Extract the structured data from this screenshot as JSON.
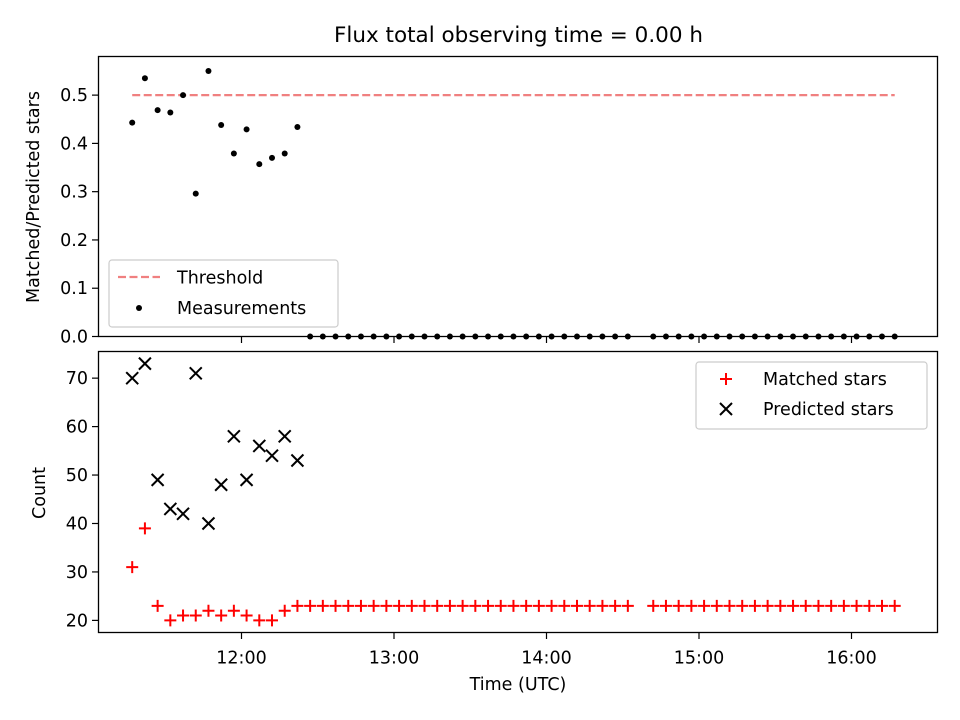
{
  "chart_data": {
    "type": "scatter",
    "title": "Flux total observing time = 0.00 h",
    "xlabel": "Time (UTC)",
    "x_ticks": [
      "12:00",
      "13:00",
      "14:00",
      "15:00",
      "16:00"
    ],
    "colors": {
      "threshold": "#f08080",
      "measurements": "#000000",
      "matched": "#ff0000",
      "predicted": "#000000"
    },
    "panels": [
      {
        "ylabel": "Matched/Predicted stars",
        "ylim": [
          0,
          0.58
        ],
        "y_ticks": [
          "0.0",
          "0.1",
          "0.2",
          "0.3",
          "0.4",
          "0.5"
        ],
        "legend_position": "lower-left",
        "threshold": {
          "name": "Threshold",
          "value": 0.5,
          "x_start": "11:17",
          "x_end": "16:17",
          "style": "dashed"
        },
        "series": [
          {
            "name": "Measurements",
            "marker": "dot",
            "x": [
              "11:17",
              "11:22",
              "11:27",
              "11:32",
              "11:37",
              "11:42",
              "11:47",
              "11:52",
              "11:57",
              "12:02",
              "12:07",
              "12:12",
              "12:17",
              "12:22",
              "12:27",
              "12:32",
              "12:37",
              "12:42",
              "12:47",
              "12:52",
              "12:57",
              "13:02",
              "13:07",
              "13:12",
              "13:17",
              "13:22",
              "13:27",
              "13:32",
              "13:37",
              "13:42",
              "13:47",
              "13:52",
              "13:57",
              "14:02",
              "14:07",
              "14:12",
              "14:17",
              "14:22",
              "14:27",
              "14:32",
              "14:42",
              "14:47",
              "14:52",
              "14:57",
              "15:02",
              "15:07",
              "15:12",
              "15:17",
              "15:22",
              "15:27",
              "15:32",
              "15:37",
              "15:42",
              "15:47",
              "15:52",
              "15:57",
              "16:02",
              "16:07",
              "16:12",
              "16:17"
            ],
            "y": [
              0.443,
              0.535,
              0.469,
              0.464,
              0.5,
              0.296,
              0.55,
              0.438,
              0.379,
              0.429,
              0.357,
              0.37,
              0.379,
              0.434,
              0,
              0,
              0,
              0,
              0,
              0,
              0,
              0,
              0,
              0,
              0,
              0,
              0,
              0,
              0,
              0,
              0,
              0,
              0,
              0,
              0,
              0,
              0,
              0,
              0,
              0,
              0,
              0,
              0,
              0,
              0,
              0,
              0,
              0,
              0,
              0,
              0,
              0,
              0,
              0,
              0,
              0,
              0,
              0,
              0,
              0
            ]
          }
        ]
      },
      {
        "ylabel": "Count",
        "ylim": [
          17.5,
          75.5
        ],
        "y_ticks": [
          "20",
          "30",
          "40",
          "50",
          "60",
          "70"
        ],
        "legend_position": "upper-right",
        "series": [
          {
            "name": "Matched stars",
            "marker": "plus",
            "x": [
              "11:17",
              "11:22",
              "11:27",
              "11:32",
              "11:37",
              "11:42",
              "11:47",
              "11:52",
              "11:57",
              "12:02",
              "12:07",
              "12:12",
              "12:17",
              "12:22",
              "12:27",
              "12:32",
              "12:37",
              "12:42",
              "12:47",
              "12:52",
              "12:57",
              "13:02",
              "13:07",
              "13:12",
              "13:17",
              "13:22",
              "13:27",
              "13:32",
              "13:37",
              "13:42",
              "13:47",
              "13:52",
              "13:57",
              "14:02",
              "14:07",
              "14:12",
              "14:17",
              "14:22",
              "14:27",
              "14:32",
              "14:42",
              "14:47",
              "14:52",
              "14:57",
              "15:02",
              "15:07",
              "15:12",
              "15:17",
              "15:22",
              "15:27",
              "15:32",
              "15:37",
              "15:42",
              "15:47",
              "15:52",
              "15:57",
              "16:02",
              "16:07",
              "16:12",
              "16:17"
            ],
            "y": [
              31,
              39,
              23,
              20,
              21,
              21,
              22,
              21,
              22,
              21,
              20,
              20,
              22,
              23,
              23,
              23,
              23,
              23,
              23,
              23,
              23,
              23,
              23,
              23,
              23,
              23,
              23,
              23,
              23,
              23,
              23,
              23,
              23,
              23,
              23,
              23,
              23,
              23,
              23,
              23,
              23,
              23,
              23,
              23,
              23,
              23,
              23,
              23,
              23,
              23,
              23,
              23,
              23,
              23,
              23,
              23,
              23,
              23,
              23,
              23
            ]
          },
          {
            "name": "Predicted stars",
            "marker": "x",
            "x": [
              "11:17",
              "11:22",
              "11:27",
              "11:32",
              "11:37",
              "11:42",
              "11:47",
              "11:52",
              "11:57",
              "12:02",
              "12:07",
              "12:12",
              "12:17",
              "12:22"
            ],
            "y": [
              70,
              73,
              49,
              43,
              42,
              71,
              40,
              48,
              58,
              49,
              56,
              54,
              58,
              53
            ]
          }
        ]
      }
    ]
  }
}
